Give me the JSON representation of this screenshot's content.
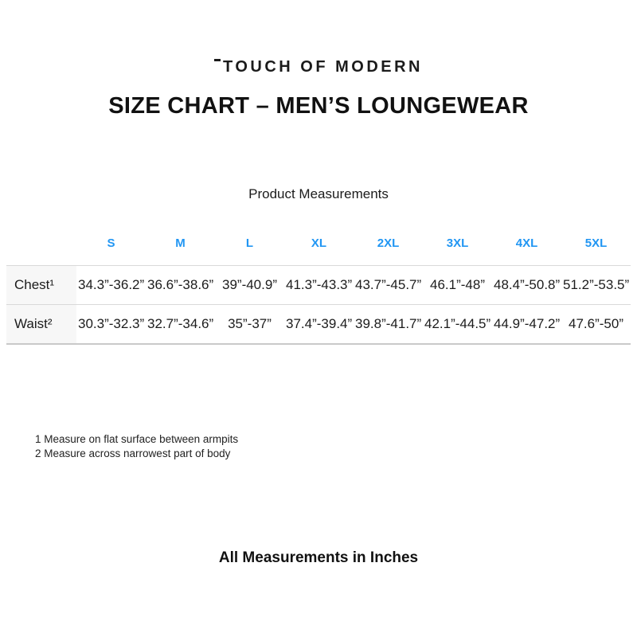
{
  "brand": {
    "logo_text": "TOUCH OF MODERN"
  },
  "title": "SIZE CHART – MEN’S LOUNGEWEAR",
  "section": {
    "subtitle": "Product Measurements"
  },
  "table": {
    "columns": [
      "S",
      "M",
      "L",
      "XL",
      "2XL",
      "3XL",
      "4XL",
      "5XL"
    ],
    "rows": [
      {
        "label": "Chest¹",
        "values": [
          "34.3”-36.2”",
          "36.6”-38.6”",
          "39”-40.9”",
          "41.3”-43.3”",
          "43.7”-45.7”",
          "46.1”-48”",
          "48.4”-50.8”",
          "51.2”-53.5”"
        ]
      },
      {
        "label": "Waist²",
        "values": [
          "30.3”-32.3”",
          "32.7”-34.6”",
          "35”-37”",
          "37.4”-39.4”",
          "39.8”-41.7”",
          "42.1”-44.5”",
          "44.9”-47.2”",
          "47.6”-50”"
        ]
      }
    ]
  },
  "footnotes": [
    "1 Measure on flat surface between armpits",
    "2 Measure across narrowest part of body"
  ],
  "footer": "All Measurements in Inches",
  "colors": {
    "accent_blue": "#2196f3",
    "table_border": "#d9d9d9",
    "label_cell_bg": "#f7f7f7",
    "text": "#1b1b1b"
  }
}
